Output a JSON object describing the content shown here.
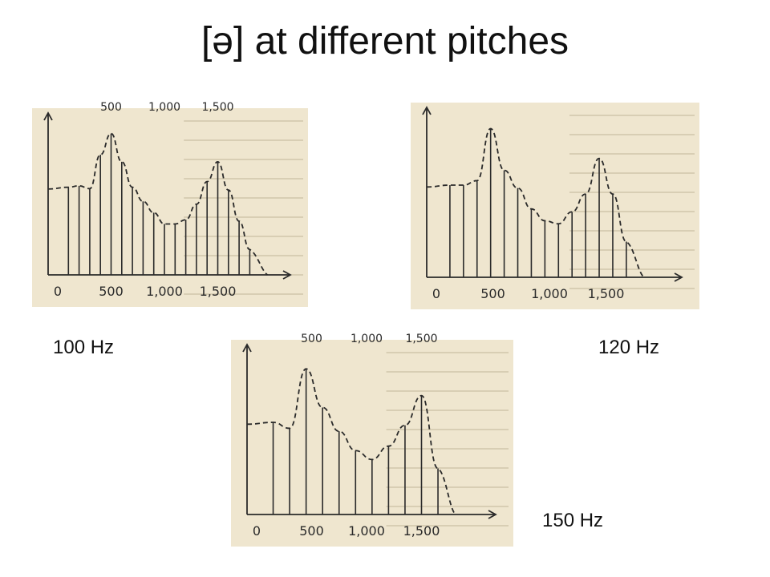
{
  "title": "[ə] at different pitches",
  "colors": {
    "paper": "#efe6cf",
    "ink": "#2a2a2a",
    "text": "#111111"
  },
  "chart_data": [
    {
      "type": "bar",
      "label": "100 Hz",
      "fundamental_hz": 100,
      "x": [
        100,
        200,
        300,
        400,
        500,
        600,
        700,
        800,
        900,
        1000,
        1100,
        1200,
        1300,
        1400,
        1500,
        1600,
        1700,
        1800
      ],
      "values": [
        0.62,
        0.63,
        0.61,
        0.85,
        1.0,
        0.8,
        0.62,
        0.52,
        0.44,
        0.36,
        0.36,
        0.39,
        0.5,
        0.66,
        0.8,
        0.6,
        0.38,
        0.18
      ],
      "envelope": "dashed",
      "xticks": [
        "0",
        "500",
        "1,000",
        "1,500"
      ],
      "top_ticks": [
        "500",
        "1,000",
        "1,500"
      ],
      "xlim": [
        0,
        2000
      ],
      "ylim": [
        0,
        1.1
      ]
    },
    {
      "type": "bar",
      "label": "120 Hz",
      "fundamental_hz": 120,
      "x": [
        120,
        240,
        360,
        480,
        600,
        720,
        840,
        960,
        1080,
        1200,
        1320,
        1440,
        1560,
        1680
      ],
      "values": [
        0.62,
        0.62,
        0.65,
        1.0,
        0.72,
        0.6,
        0.46,
        0.38,
        0.36,
        0.44,
        0.56,
        0.8,
        0.56,
        0.24
      ],
      "envelope": "dashed",
      "xticks": [
        "0",
        "500",
        "1,000",
        "1,500"
      ],
      "xlim": [
        0,
        2000
      ],
      "ylim": [
        0,
        1.1
      ]
    },
    {
      "type": "bar",
      "label": "150 Hz",
      "fundamental_hz": 150,
      "x": [
        150,
        300,
        450,
        600,
        750,
        900,
        1050,
        1200,
        1350,
        1500,
        1650
      ],
      "values": [
        0.62,
        0.58,
        0.98,
        0.72,
        0.56,
        0.43,
        0.37,
        0.46,
        0.6,
        0.8,
        0.31
      ],
      "envelope": "dashed",
      "xticks": [
        "0",
        "500",
        "1,000",
        "1,500"
      ],
      "top_ticks": [
        "500",
        "1,000",
        "1,500"
      ],
      "xlim": [
        0,
        2000
      ],
      "ylim": [
        0,
        1.1
      ]
    }
  ]
}
